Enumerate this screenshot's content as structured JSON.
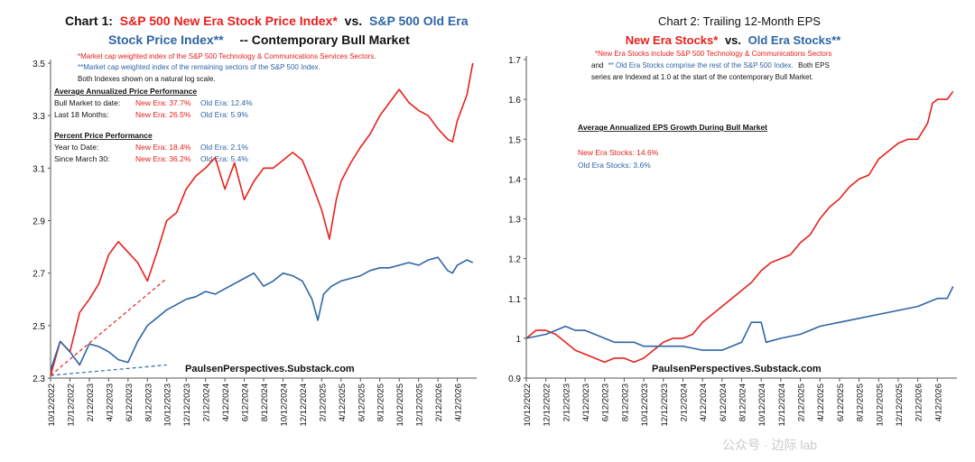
{
  "colors": {
    "new_era": "#e8201c",
    "old_era": "#2e65a6",
    "text": "#111111"
  },
  "chart_data": [
    {
      "type": "line",
      "title_prefix": "Chart 1:",
      "title_red": "S&P 500 New Era Stock Price Index*",
      "title_mid": "vs.",
      "title_blue_1": "S&P 500 Old Era",
      "title_blue_2": "Stock Price Index**",
      "title_suffix": "-- Contemporary Bull Market",
      "footnote_red": "*Market cap weighted index of the S&P 500 Technology & Communications Services Sectors.",
      "footnote_blue": "**Market cap weighted index of the remaining sectors of the S&P 500 Index.",
      "footnote_black": "Both Indexes shown on a natural log scale.",
      "perf_heading": "Average Annualized Price Performance",
      "perf_rows": [
        {
          "label": "Bull Market to date:",
          "new_era": "New Era: 37.7%",
          "old_era": "Old Era: 12.4%"
        },
        {
          "label": "Last 18 Months:",
          "new_era": "New Era: 26.5%",
          "old_era": "Old Era: 5.9%"
        }
      ],
      "pct_heading": "Percent Price Performance",
      "pct_rows": [
        {
          "label": "Year to Date:",
          "new_era": "New Era: 18.4%",
          "old_era": "Old Era: 2.1%"
        },
        {
          "label": "Since March 30:",
          "new_era": "New Era: 36.2%",
          "old_era": "Old Era: 5.4%"
        }
      ],
      "watermark": "PaulsenPerspectives.Substack.com",
      "y_ticks": [
        "3.5",
        "3.3",
        "3.1",
        "2.9",
        "2.7",
        "2.5",
        "2.3"
      ],
      "ylim": [
        2.3,
        3.5
      ],
      "x_ticks": [
        "10/12/2022",
        "12/12/2022",
        "2/12/2023",
        "4/12/2023",
        "6/12/2023",
        "8/12/2023",
        "10/12/2023",
        "12/12/2023",
        "2/12/2024",
        "4/12/2024",
        "6/12/2024",
        "8/12/2024",
        "10/12/2024",
        "12/12/2024",
        "2/12/2025",
        "4/12/2025",
        "6/12/2025",
        "8/12/2025",
        "10/12/2025",
        "12/12/2025",
        "2/12/2026",
        "4/12/2026"
      ],
      "x_months_span": 44,
      "series": [
        {
          "color": "#e8201c",
          "points": [
            [
              0,
              2.31
            ],
            [
              1,
              2.44
            ],
            [
              2,
              2.4
            ],
            [
              3,
              2.55
            ],
            [
              4,
              2.6
            ],
            [
              5,
              2.66
            ],
            [
              6,
              2.77
            ],
            [
              7,
              2.82
            ],
            [
              8,
              2.78
            ],
            [
              9,
              2.74
            ],
            [
              10,
              2.67
            ],
            [
              11,
              2.78
            ],
            [
              12,
              2.9
            ],
            [
              13,
              2.93
            ],
            [
              14,
              3.02
            ],
            [
              15,
              3.07
            ],
            [
              16,
              3.1
            ],
            [
              17,
              3.14
            ],
            [
              18,
              3.02
            ],
            [
              19,
              3.12
            ],
            [
              20,
              2.98
            ],
            [
              21,
              3.05
            ],
            [
              22,
              3.1
            ],
            [
              23,
              3.1
            ],
            [
              24,
              3.13
            ],
            [
              25,
              3.16
            ],
            [
              26,
              3.13
            ],
            [
              27,
              3.04
            ],
            [
              28,
              2.94
            ],
            [
              28.8,
              2.83
            ],
            [
              29.5,
              2.98
            ],
            [
              30,
              3.05
            ],
            [
              31,
              3.12
            ],
            [
              32,
              3.18
            ],
            [
              33,
              3.23
            ],
            [
              34,
              3.3
            ],
            [
              35,
              3.35
            ],
            [
              36,
              3.4
            ],
            [
              37,
              3.35
            ],
            [
              38,
              3.32
            ],
            [
              39,
              3.3
            ],
            [
              40,
              3.25
            ],
            [
              41,
              3.21
            ],
            [
              41.5,
              3.2
            ],
            [
              42,
              3.28
            ],
            [
              43,
              3.38
            ],
            [
              43.6,
              3.5
            ]
          ]
        },
        {
          "color": "#2e65a6",
          "points": [
            [
              0,
              2.33
            ],
            [
              1,
              2.44
            ],
            [
              2,
              2.4
            ],
            [
              3,
              2.35
            ],
            [
              4,
              2.43
            ],
            [
              5,
              2.42
            ],
            [
              6,
              2.4
            ],
            [
              7,
              2.37
            ],
            [
              8,
              2.36
            ],
            [
              9,
              2.44
            ],
            [
              10,
              2.5
            ],
            [
              11,
              2.53
            ],
            [
              12,
              2.56
            ],
            [
              13,
              2.58
            ],
            [
              14,
              2.6
            ],
            [
              15,
              2.61
            ],
            [
              16,
              2.63
            ],
            [
              17,
              2.62
            ],
            [
              18,
              2.64
            ],
            [
              19,
              2.66
            ],
            [
              20,
              2.68
            ],
            [
              21,
              2.7
            ],
            [
              22,
              2.65
            ],
            [
              23,
              2.67
            ],
            [
              24,
              2.7
            ],
            [
              25,
              2.69
            ],
            [
              26,
              2.67
            ],
            [
              27,
              2.6
            ],
            [
              27.6,
              2.52
            ],
            [
              28.2,
              2.62
            ],
            [
              29,
              2.65
            ],
            [
              30,
              2.67
            ],
            [
              31,
              2.68
            ],
            [
              32,
              2.69
            ],
            [
              33,
              2.71
            ],
            [
              34,
              2.72
            ],
            [
              35,
              2.72
            ],
            [
              36,
              2.73
            ],
            [
              37,
              2.74
            ],
            [
              38,
              2.73
            ],
            [
              39,
              2.75
            ],
            [
              40,
              2.76
            ],
            [
              41,
              2.71
            ],
            [
              41.5,
              2.7
            ],
            [
              42,
              2.73
            ],
            [
              43,
              2.75
            ],
            [
              43.6,
              2.74
            ]
          ]
        }
      ],
      "trendlines": [
        {
          "color": "#e8201c",
          "from": [
            0,
            2.31
          ],
          "to": [
            12,
            2.68
          ]
        },
        {
          "color": "#2e65a6",
          "from": [
            0,
            2.31
          ],
          "to": [
            12,
            2.35
          ]
        }
      ]
    },
    {
      "type": "line",
      "title_1": "Chart 2: Trailing 12-Month EPS",
      "title_red": "New Era Stocks*",
      "title_mid": "vs.",
      "title_blue": "Old Era Stocks**",
      "footnote_red": "*New Era Stocks include S&P 500 Technology & Communications Sectors",
      "footnote_and": "and",
      "footnote_blue": "** Old Era Stocks comprise the rest of the S&P 500 Index.",
      "footnote_tail_1": "Both EPS",
      "footnote_tail_2": "series are Indexed at 1.0 at the start of the contemporary Bull Market.",
      "growth_heading": "Average Annualized EPS Growth During Bull Market",
      "growth_new": "New Era Stocks:  14.6%",
      "growth_old": "Old  Era Stocks:    3.6%",
      "watermark": "PaulsenPerspectives.Substack.com",
      "y_ticks": [
        "1.7",
        "1.6",
        "1.5",
        "1.4",
        "1.3",
        "1.2",
        "1.1",
        "1",
        "0.9"
      ],
      "ylim": [
        0.9,
        1.7
      ],
      "x_ticks": [
        "10/12/2022",
        "12/12/2022",
        "2/12/2023",
        "4/12/2023",
        "6/12/2023",
        "8/12/2023",
        "10/12/2023",
        "12/12/2023",
        "2/12/2024",
        "4/12/2024",
        "6/12/2024",
        "8/12/2024",
        "10/12/2024",
        "12/12/2024",
        "2/12/2025",
        "4/12/2025",
        "6/12/2025",
        "8/12/2025",
        "10/12/2025",
        "12/12/2025",
        "2/12/2026",
        "4/12/2026"
      ],
      "x_months_span": 44,
      "series": [
        {
          "color": "#e8201c",
          "points": [
            [
              0,
              1.0
            ],
            [
              1,
              1.02
            ],
            [
              2,
              1.02
            ],
            [
              3,
              1.01
            ],
            [
              4,
              0.99
            ],
            [
              5,
              0.97
            ],
            [
              6,
              0.96
            ],
            [
              7,
              0.95
            ],
            [
              8,
              0.94
            ],
            [
              9,
              0.95
            ],
            [
              10,
              0.95
            ],
            [
              11,
              0.94
            ],
            [
              12,
              0.95
            ],
            [
              13,
              0.97
            ],
            [
              14,
              0.99
            ],
            [
              15,
              1.0
            ],
            [
              16,
              1.0
            ],
            [
              17,
              1.01
            ],
            [
              18,
              1.04
            ],
            [
              19,
              1.06
            ],
            [
              20,
              1.08
            ],
            [
              21,
              1.1
            ],
            [
              22,
              1.12
            ],
            [
              23,
              1.14
            ],
            [
              24,
              1.17
            ],
            [
              25,
              1.19
            ],
            [
              26,
              1.2
            ],
            [
              27,
              1.21
            ],
            [
              28,
              1.24
            ],
            [
              29,
              1.26
            ],
            [
              30,
              1.3
            ],
            [
              31,
              1.33
            ],
            [
              32,
              1.35
            ],
            [
              33,
              1.38
            ],
            [
              34,
              1.4
            ],
            [
              35,
              1.41
            ],
            [
              36,
              1.45
            ],
            [
              37,
              1.47
            ],
            [
              38,
              1.49
            ],
            [
              39,
              1.5
            ],
            [
              40,
              1.5
            ],
            [
              41,
              1.54
            ],
            [
              41.5,
              1.59
            ],
            [
              42,
              1.6
            ],
            [
              43,
              1.6
            ],
            [
              43.6,
              1.62
            ]
          ]
        },
        {
          "color": "#2e65a6",
          "points": [
            [
              0,
              1.0
            ],
            [
              2,
              1.01
            ],
            [
              3,
              1.02
            ],
            [
              4,
              1.03
            ],
            [
              5,
              1.02
            ],
            [
              6,
              1.02
            ],
            [
              7,
              1.01
            ],
            [
              8,
              1.0
            ],
            [
              9,
              0.99
            ],
            [
              10,
              0.99
            ],
            [
              11,
              0.99
            ],
            [
              12,
              0.98
            ],
            [
              14,
              0.98
            ],
            [
              16,
              0.98
            ],
            [
              18,
              0.97
            ],
            [
              20,
              0.97
            ],
            [
              21,
              0.98
            ],
            [
              22,
              0.99
            ],
            [
              23,
              1.04
            ],
            [
              24,
              1.04
            ],
            [
              24.5,
              0.99
            ],
            [
              26,
              1.0
            ],
            [
              28,
              1.01
            ],
            [
              30,
              1.03
            ],
            [
              32,
              1.04
            ],
            [
              34,
              1.05
            ],
            [
              36,
              1.06
            ],
            [
              38,
              1.07
            ],
            [
              40,
              1.08
            ],
            [
              42,
              1.1
            ],
            [
              43,
              1.1
            ],
            [
              43.6,
              1.13
            ]
          ]
        }
      ]
    }
  ],
  "overlay_watermark": "公众号 · 边际 lab"
}
